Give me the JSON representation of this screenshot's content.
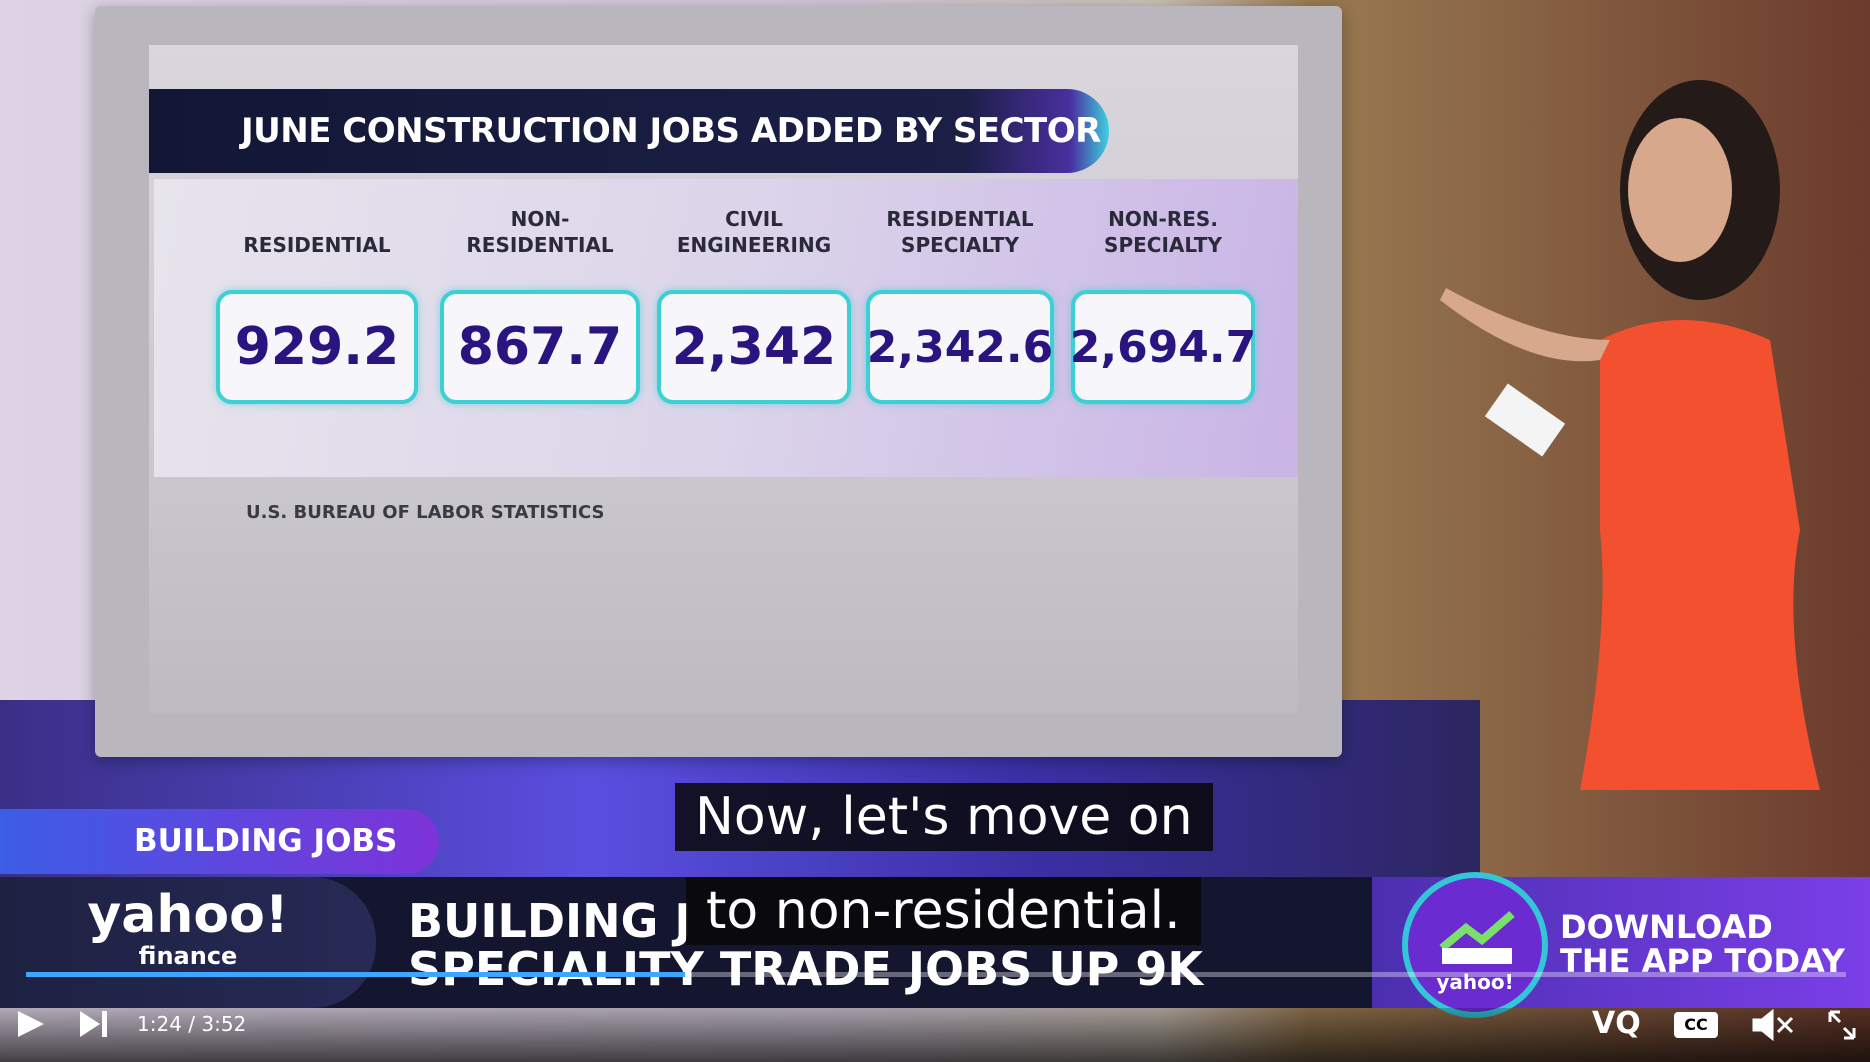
{
  "graphic": {
    "title": "JUNE CONSTRUCTION JOBS ADDED BY SECTOR",
    "sectors": [
      {
        "label_lines": [
          "RESIDENTIAL"
        ],
        "value": "929.2"
      },
      {
        "label_lines": [
          "NON-",
          "RESIDENTIAL"
        ],
        "value": "867.7"
      },
      {
        "label_lines": [
          "CIVIL",
          "ENGINEERING"
        ],
        "value": "2,342"
      },
      {
        "label_lines": [
          "RESIDENTIAL",
          "SPECIALTY"
        ],
        "value": "2,342.6"
      },
      {
        "label_lines": [
          "NON-RES.",
          "SPECIALTY"
        ],
        "value": "2,694.7"
      }
    ],
    "source": "U.S. BUREAU OF LABOR STATISTICS"
  },
  "lower_third": {
    "tag": "BUILDING JOBS",
    "brand": "yahoo!",
    "brand_sub": "finance",
    "headline_lines": [
      "BUILDING J",
      "SPECIALITY TRADE JOBS UP 9K"
    ],
    "promo_lines": [
      "DOWNLOAD",
      "THE APP TODAY"
    ],
    "promo_logo": "yahoo!"
  },
  "captions": [
    "Now, let's move on",
    "to non-residential."
  ],
  "player": {
    "time": "1:24 / 3:52",
    "quality": "VQ",
    "cc": "CC"
  }
}
